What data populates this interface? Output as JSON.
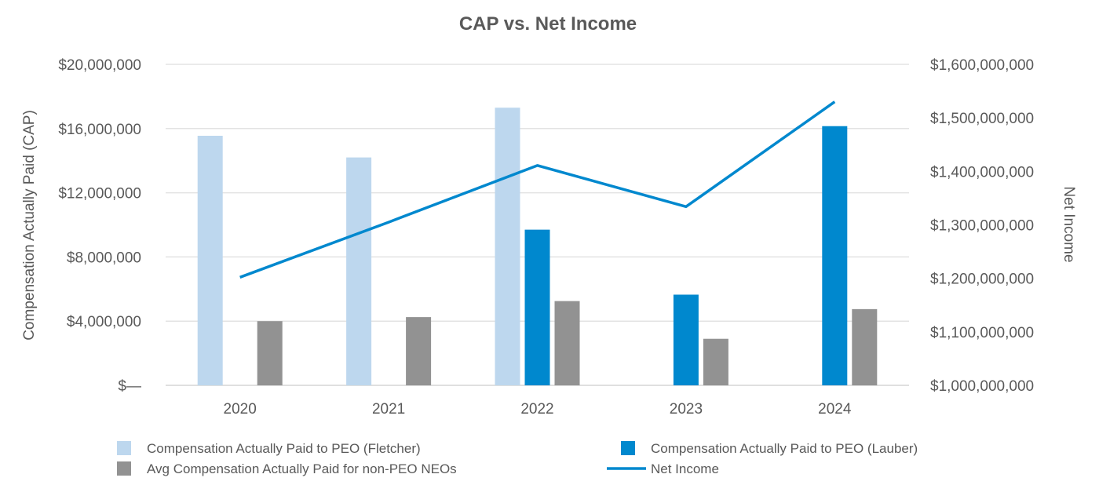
{
  "chart_data": {
    "type": "bar",
    "title": "CAP vs. Net Income",
    "categories": [
      "2020",
      "2021",
      "2022",
      "2023",
      "2024"
    ],
    "ylabel": "Compensation Actually Paid (CAP)",
    "y2label": "Net Income",
    "ylim": [
      0,
      20000000
    ],
    "y2lim": [
      1000000000,
      1600000000
    ],
    "y_ticks": [
      0,
      4000000,
      8000000,
      12000000,
      16000000,
      20000000
    ],
    "y_tick_labels": [
      "$—",
      "$4,000,000",
      "$8,000,000",
      "$12,000,000",
      "$16,000,000",
      "$20,000,000"
    ],
    "y2_ticks": [
      1000000000,
      1100000000,
      1200000000,
      1300000000,
      1400000000,
      1500000000,
      1600000000
    ],
    "y2_tick_labels": [
      "$1,000,000,000",
      "$1,100,000,000",
      "$1,200,000,000",
      "$1,300,000,000",
      "$1,400,000,000",
      "$1,500,000,000",
      "$1,600,000,000"
    ],
    "grid": true,
    "legend_position": "bottom",
    "series": [
      {
        "name": "Compensation Actually Paid to PEO (Fletcher)",
        "kind": "bar",
        "axis": "left",
        "color": "#bdd7ee",
        "values": [
          15550000,
          14200000,
          17300000,
          null,
          null
        ]
      },
      {
        "name": "Compensation Actually Paid to PEO (Lauber)",
        "kind": "bar",
        "axis": "left",
        "color": "#0088ce",
        "values": [
          null,
          null,
          9700000,
          5650000,
          16150000
        ]
      },
      {
        "name": "Avg Compensation Actually Paid for non-PEO NEOs",
        "kind": "bar",
        "axis": "left",
        "color": "#929292",
        "values": [
          4000000,
          4250000,
          5250000,
          2900000,
          4750000
        ]
      },
      {
        "name": "Net Income",
        "kind": "line",
        "axis": "right",
        "color": "#0088ce",
        "values": [
          1202000000,
          1305000000,
          1411000000,
          1334000000,
          1530000000
        ]
      }
    ]
  }
}
